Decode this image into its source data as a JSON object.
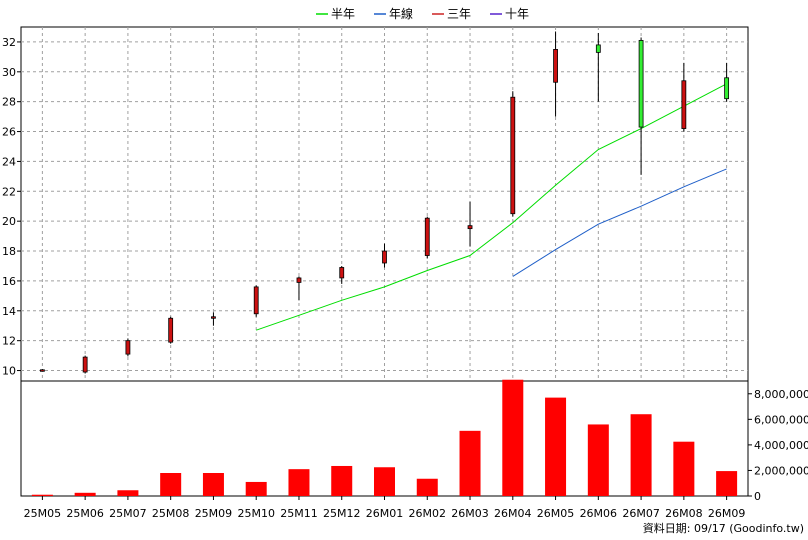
{
  "chart_data": {
    "type": "candlestick",
    "legend": [
      {
        "name": "半年",
        "color": "#00dd00"
      },
      {
        "name": "年線",
        "color": "#1f5fc8"
      },
      {
        "name": "三年",
        "color": "#cc2222"
      },
      {
        "name": "十年",
        "color": "#5522cc"
      }
    ],
    "categories": [
      "25M05",
      "25M06",
      "25M07",
      "25M08",
      "25M09",
      "25M10",
      "25M11",
      "25M12",
      "26M01",
      "26M02",
      "26M03",
      "26M04",
      "26M05",
      "26M06",
      "26M07",
      "26M08",
      "26M09"
    ],
    "price_axis": {
      "min": 9.3,
      "max": 33,
      "ticks": [
        10,
        12,
        14,
        16,
        18,
        20,
        22,
        24,
        26,
        28,
        30,
        32
      ]
    },
    "volume_axis": {
      "min": 0,
      "max": 9000000,
      "ticks": [
        0,
        2000000,
        4000000,
        6000000,
        8000000
      ],
      "tick_labels": [
        "0",
        "2,000,000",
        "4,000,000",
        "6,000,000",
        "8,000,000"
      ]
    },
    "candles": [
      {
        "open": 10.05,
        "high": 10.1,
        "low": 9.95,
        "close": 10.0,
        "color": "red"
      },
      {
        "open": 9.9,
        "high": 11.0,
        "low": 9.8,
        "close": 10.9,
        "color": "red"
      },
      {
        "open": 11.1,
        "high": 12.15,
        "low": 10.95,
        "close": 12.0,
        "color": "red"
      },
      {
        "open": 11.9,
        "high": 13.6,
        "low": 11.8,
        "close": 13.5,
        "color": "red"
      },
      {
        "open": 13.5,
        "high": 13.9,
        "low": 13.0,
        "close": 13.6,
        "color": "red"
      },
      {
        "open": 13.8,
        "high": 15.7,
        "low": 13.6,
        "close": 15.6,
        "color": "red"
      },
      {
        "open": 15.9,
        "high": 16.3,
        "low": 14.7,
        "close": 16.2,
        "color": "red"
      },
      {
        "open": 16.2,
        "high": 17.0,
        "low": 15.8,
        "close": 16.9,
        "color": "red"
      },
      {
        "open": 17.2,
        "high": 18.5,
        "low": 16.9,
        "close": 18.0,
        "color": "red"
      },
      {
        "open": 17.7,
        "high": 20.3,
        "low": 17.5,
        "close": 20.2,
        "color": "red"
      },
      {
        "open": 19.5,
        "high": 21.3,
        "low": 18.3,
        "close": 19.7,
        "color": "red"
      },
      {
        "open": 20.5,
        "high": 28.7,
        "low": 20.3,
        "close": 28.3,
        "color": "red"
      },
      {
        "open": 29.3,
        "high": 32.7,
        "low": 27.0,
        "close": 31.5,
        "color": "red"
      },
      {
        "open": 31.8,
        "high": 32.6,
        "low": 28.0,
        "close": 31.3,
        "color": "green"
      },
      {
        "open": 32.1,
        "high": 32.3,
        "low": 23.1,
        "close": 26.3,
        "color": "green"
      },
      {
        "open": 26.2,
        "high": 30.6,
        "low": 26.0,
        "close": 29.4,
        "color": "red"
      },
      {
        "open": 29.6,
        "high": 30.6,
        "low": 28.0,
        "close": 28.2,
        "color": "green"
      }
    ],
    "volume": [
      100000,
      250000,
      450000,
      1800000,
      1800000,
      1100000,
      2100000,
      2350000,
      2250000,
      1350000,
      5100000,
      9100000,
      7700000,
      5600000,
      6400000,
      4250000,
      1950000
    ],
    "series": [
      {
        "name": "半年",
        "color": "#00dd00",
        "values": [
          null,
          null,
          null,
          null,
          null,
          12.7,
          13.7,
          14.7,
          15.6,
          16.7,
          17.7,
          19.9,
          22.4,
          24.8,
          26.2,
          27.7,
          29.2
        ]
      },
      {
        "name": "年線",
        "color": "#1f5fc8",
        "values": [
          null,
          null,
          null,
          null,
          null,
          null,
          null,
          null,
          null,
          null,
          null,
          16.3,
          18.1,
          19.8,
          21.0,
          22.3,
          23.5
        ]
      }
    ],
    "footer": "資料日期: 09/17  (Goodinfo.tw)"
  }
}
